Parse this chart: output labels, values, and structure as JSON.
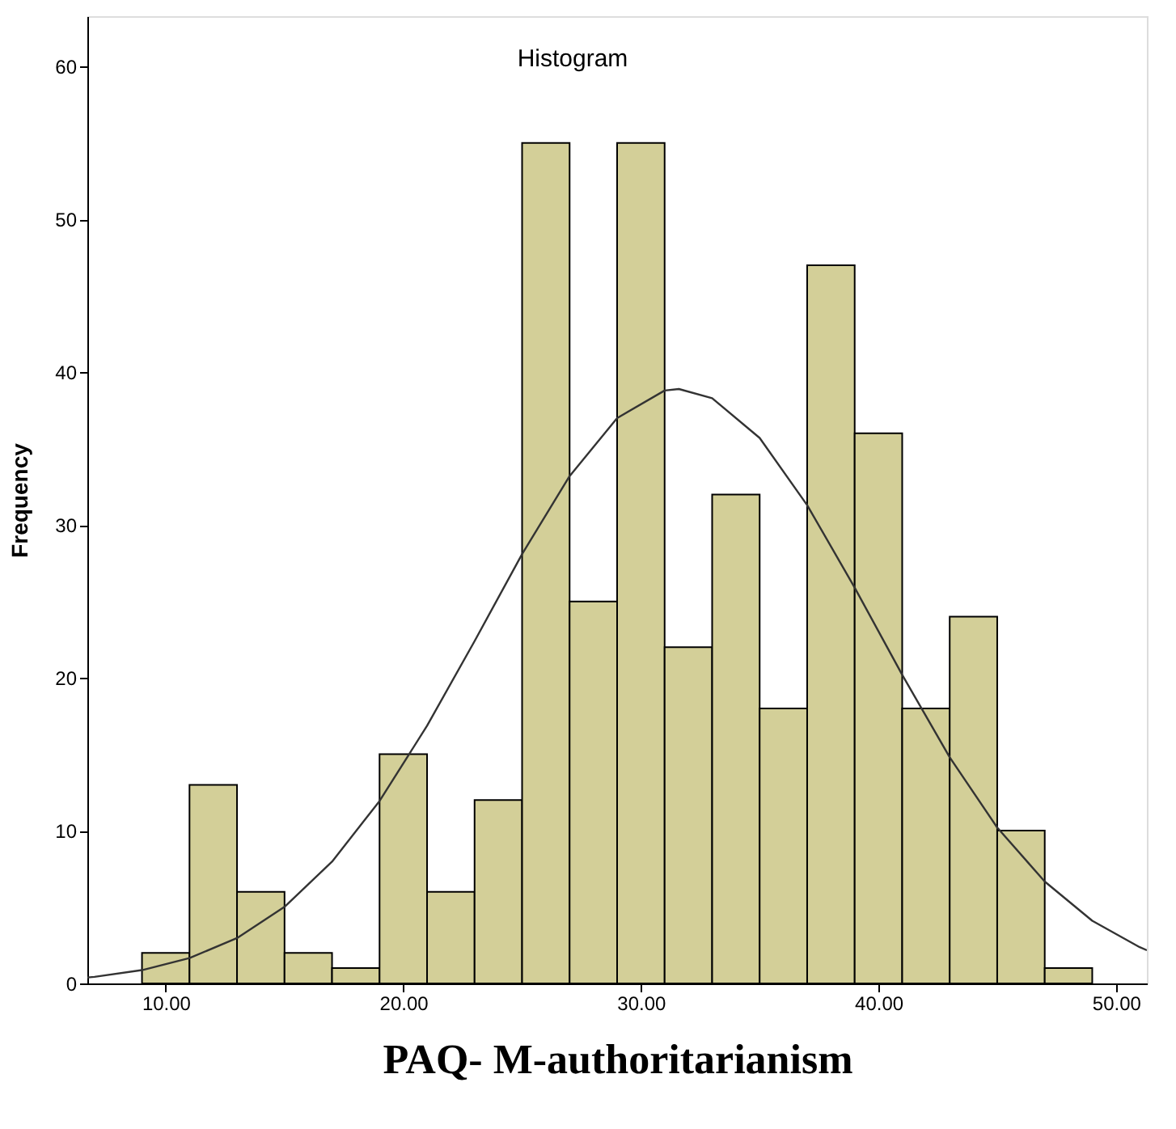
{
  "chart_data": {
    "type": "histogram",
    "title": "Histogram",
    "xlabel": "PAQ- M-authoritarianism",
    "ylabel": "Frequency",
    "bins": [
      9,
      11,
      13,
      15,
      17,
      19,
      21,
      23,
      25,
      27,
      29,
      31,
      33,
      35,
      37,
      39,
      41,
      43,
      45,
      47,
      49
    ],
    "values": [
      2,
      13,
      6,
      2,
      1,
      15,
      6,
      12,
      55,
      25,
      55,
      22,
      32,
      18,
      47,
      36,
      18,
      24,
      10,
      1
    ],
    "color": "#d3cf98",
    "series": [
      {
        "type": "line",
        "color": "#333333",
        "x": [
          6.7,
          7,
          9,
          11,
          13,
          15,
          17,
          19,
          21,
          23,
          25,
          27,
          29,
          31,
          31.6,
          33,
          35,
          37,
          39,
          41,
          43,
          45,
          47,
          49,
          51,
          51.3
        ],
        "values": [
          0.39,
          0.43,
          0.87,
          1.66,
          2.97,
          5.01,
          7.97,
          11.94,
          16.86,
          22.4,
          28.1,
          33.2,
          37.0,
          38.8,
          38.9,
          38.3,
          35.7,
          31.3,
          25.9,
          20.2,
          14.8,
          10.2,
          6.67,
          4.1,
          2.37,
          2.17
        ]
      }
    ],
    "xlim": [
      6.7,
      51.3
    ],
    "ylim": [
      0,
      63.3
    ],
    "xticks": [
      {
        "value": 10,
        "label": "10.00"
      },
      {
        "value": 20,
        "label": "20.00"
      },
      {
        "value": 30,
        "label": "30.00"
      },
      {
        "value": 40,
        "label": "40.00"
      },
      {
        "value": 50,
        "label": "50.00"
      }
    ],
    "yticks": [
      0,
      10,
      20,
      30,
      40,
      50,
      60
    ],
    "grid": false
  }
}
